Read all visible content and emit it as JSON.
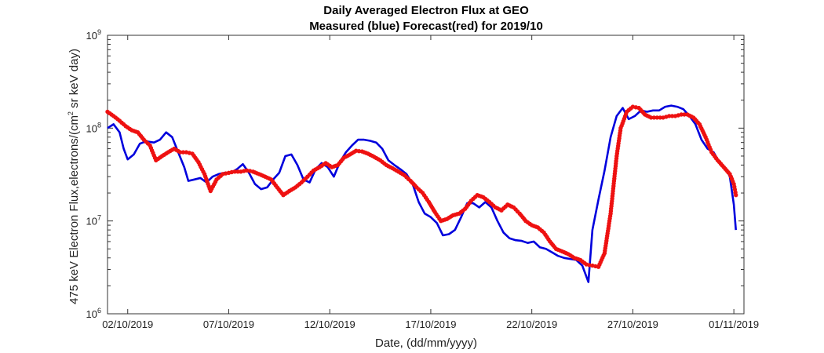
{
  "chart_data": {
    "type": "line",
    "title": "Daily Averaged Electron Flux at GEO",
    "subtitle": "Measured (blue) Forecast(red) for 2019/10",
    "xlabel": "Date, (dd/mm/yyyy)",
    "ylabel_main": "475 keV Electron Flux,electrons/(cm",
    "ylabel_exp": "2",
    "ylabel_tail": " sr keV day)",
    "x_unit": "day of October 2019",
    "xlim": [
      1,
      32.5
    ],
    "ylim": [
      1000000,
      1000000000
    ],
    "yscale": "log",
    "grid": false,
    "x_ticks": [
      {
        "value": 2,
        "label": "02/10/2019"
      },
      {
        "value": 7,
        "label": "07/10/2019"
      },
      {
        "value": 12,
        "label": "12/10/2019"
      },
      {
        "value": 17,
        "label": "17/10/2019"
      },
      {
        "value": 22,
        "label": "22/10/2019"
      },
      {
        "value": 27,
        "label": "27/10/2019"
      },
      {
        "value": 32,
        "label": "01/11/2019"
      }
    ],
    "y_ticks": [
      {
        "value": 1000000,
        "base": "10",
        "exp": "6"
      },
      {
        "value": 10000000,
        "base": "10",
        "exp": "7"
      },
      {
        "value": 100000000,
        "base": "10",
        "exp": "8"
      },
      {
        "value": 1000000000,
        "base": "10",
        "exp": "9"
      }
    ],
    "series": [
      {
        "color": "#0000dd",
        "style": "line",
        "points": [
          [
            1.0,
            100000000.0
          ],
          [
            1.3,
            110000000.0
          ],
          [
            1.6,
            90000000.0
          ],
          [
            1.8,
            60000000.0
          ],
          [
            2.0,
            46000000.0
          ],
          [
            2.3,
            52000000.0
          ],
          [
            2.6,
            68000000.0
          ],
          [
            2.9,
            72000000.0
          ],
          [
            3.3,
            70000000.0
          ],
          [
            3.6,
            75000000.0
          ],
          [
            3.9,
            90000000.0
          ],
          [
            4.2,
            80000000.0
          ],
          [
            4.5,
            55000000.0
          ],
          [
            4.8,
            38000000.0
          ],
          [
            5.0,
            27000000.0
          ],
          [
            5.3,
            28000000.0
          ],
          [
            5.6,
            29000000.0
          ],
          [
            5.9,
            26000000.0
          ],
          [
            6.2,
            30000000.0
          ],
          [
            6.5,
            32000000.0
          ],
          [
            6.8,
            33000000.0
          ],
          [
            7.1,
            33000000.0
          ],
          [
            7.4,
            36000000.0
          ],
          [
            7.7,
            41000000.0
          ],
          [
            8.0,
            33000000.0
          ],
          [
            8.3,
            25000000.0
          ],
          [
            8.6,
            22000000.0
          ],
          [
            8.9,
            23000000.0
          ],
          [
            9.2,
            28000000.0
          ],
          [
            9.5,
            33000000.0
          ],
          [
            9.8,
            50000000.0
          ],
          [
            10.1,
            52000000.0
          ],
          [
            10.4,
            40000000.0
          ],
          [
            10.7,
            28000000.0
          ],
          [
            11.0,
            26000000.0
          ],
          [
            11.3,
            36000000.0
          ],
          [
            11.6,
            42000000.0
          ],
          [
            11.9,
            38000000.0
          ],
          [
            12.2,
            30000000.0
          ],
          [
            12.5,
            43000000.0
          ],
          [
            12.8,
            55000000.0
          ],
          [
            13.1,
            65000000.0
          ],
          [
            13.4,
            75000000.0
          ],
          [
            13.7,
            75000000.0
          ],
          [
            14.0,
            73000000.0
          ],
          [
            14.3,
            70000000.0
          ],
          [
            14.6,
            60000000.0
          ],
          [
            14.9,
            45000000.0
          ],
          [
            15.2,
            40000000.0
          ],
          [
            15.5,
            36000000.0
          ],
          [
            15.8,
            32000000.0
          ],
          [
            16.1,
            25000000.0
          ],
          [
            16.4,
            16000000.0
          ],
          [
            16.7,
            12000000.0
          ],
          [
            17.0,
            11000000.0
          ],
          [
            17.3,
            9500000.0
          ],
          [
            17.6,
            7000000.0
          ],
          [
            17.9,
            7200000.0
          ],
          [
            18.2,
            8000000.0
          ],
          [
            18.5,
            11000000.0
          ],
          [
            18.8,
            15500000.0
          ],
          [
            19.1,
            15500000.0
          ],
          [
            19.4,
            14000000.0
          ],
          [
            19.7,
            16000000.0
          ],
          [
            20.0,
            14000000.0
          ],
          [
            20.3,
            10000000.0
          ],
          [
            20.6,
            7500000.0
          ],
          [
            20.9,
            6500000.0
          ],
          [
            21.2,
            6200000.0
          ],
          [
            21.5,
            6100000.0
          ],
          [
            21.8,
            5800000.0
          ],
          [
            22.1,
            6000000.0
          ],
          [
            22.4,
            5200000.0
          ],
          [
            22.7,
            5000000.0
          ],
          [
            23.0,
            4600000.0
          ],
          [
            23.3,
            4200000.0
          ],
          [
            23.6,
            4000000.0
          ],
          [
            23.9,
            3900000.0
          ],
          [
            24.2,
            3800000.0
          ],
          [
            24.5,
            3300000.0
          ],
          [
            24.8,
            2200000.0
          ],
          [
            25.0,
            8000000.0
          ],
          [
            25.3,
            17000000.0
          ],
          [
            25.6,
            35000000.0
          ],
          [
            25.9,
            80000000.0
          ],
          [
            26.2,
            135000000.0
          ],
          [
            26.5,
            165000000.0
          ],
          [
            26.8,
            125000000.0
          ],
          [
            27.1,
            135000000.0
          ],
          [
            27.4,
            155000000.0
          ],
          [
            27.7,
            150000000.0
          ],
          [
            28.0,
            155000000.0
          ],
          [
            28.3,
            155000000.0
          ],
          [
            28.6,
            170000000.0
          ],
          [
            28.9,
            175000000.0
          ],
          [
            29.2,
            170000000.0
          ],
          [
            29.5,
            160000000.0
          ],
          [
            29.8,
            135000000.0
          ],
          [
            30.1,
            110000000.0
          ],
          [
            30.4,
            75000000.0
          ],
          [
            30.7,
            60000000.0
          ],
          [
            31.0,
            55000000.0
          ],
          [
            31.3,
            42000000.0
          ],
          [
            31.6,
            37000000.0
          ],
          [
            31.8,
            30000000.0
          ],
          [
            32.0,
            15000000.0
          ],
          [
            32.1,
            8000000.0
          ]
        ]
      },
      {
        "color": "#ee1111",
        "style": "dots",
        "points": [
          [
            1.0,
            150000000.0
          ],
          [
            1.3,
            135000000.0
          ],
          [
            1.6,
            120000000.0
          ],
          [
            1.9,
            105000000.0
          ],
          [
            2.2,
            95000000.0
          ],
          [
            2.5,
            90000000.0
          ],
          [
            2.8,
            75000000.0
          ],
          [
            3.1,
            65000000.0
          ],
          [
            3.4,
            45000000.0
          ],
          [
            3.7,
            50000000.0
          ],
          [
            4.0,
            55000000.0
          ],
          [
            4.3,
            60000000.0
          ],
          [
            4.6,
            55000000.0
          ],
          [
            4.9,
            55000000.0
          ],
          [
            5.2,
            53000000.0
          ],
          [
            5.5,
            43000000.0
          ],
          [
            5.8,
            32000000.0
          ],
          [
            6.1,
            21000000.0
          ],
          [
            6.4,
            28000000.0
          ],
          [
            6.7,
            32000000.0
          ],
          [
            7.0,
            33000000.0
          ],
          [
            7.3,
            34000000.0
          ],
          [
            7.6,
            34000000.0
          ],
          [
            7.9,
            35000000.0
          ],
          [
            8.2,
            34000000.0
          ],
          [
            8.5,
            32000000.0
          ],
          [
            8.8,
            30000000.0
          ],
          [
            9.1,
            28000000.0
          ],
          [
            9.4,
            23000000.0
          ],
          [
            9.7,
            19000000.0
          ],
          [
            10.0,
            21000000.0
          ],
          [
            10.3,
            23000000.0
          ],
          [
            10.6,
            26000000.0
          ],
          [
            10.9,
            30000000.0
          ],
          [
            11.2,
            35000000.0
          ],
          [
            11.5,
            38000000.0
          ],
          [
            11.8,
            42000000.0
          ],
          [
            12.1,
            38000000.0
          ],
          [
            12.4,
            40000000.0
          ],
          [
            12.7,
            48000000.0
          ],
          [
            13.0,
            52000000.0
          ],
          [
            13.3,
            57000000.0
          ],
          [
            13.6,
            56000000.0
          ],
          [
            13.9,
            53000000.0
          ],
          [
            14.2,
            49000000.0
          ],
          [
            14.5,
            45000000.0
          ],
          [
            14.8,
            40000000.0
          ],
          [
            15.1,
            37000000.0
          ],
          [
            15.4,
            34000000.0
          ],
          [
            15.7,
            31000000.0
          ],
          [
            16.0,
            27000000.0
          ],
          [
            16.3,
            23000000.0
          ],
          [
            16.6,
            20000000.0
          ],
          [
            16.9,
            16000000.0
          ],
          [
            17.2,
            12500000.0
          ],
          [
            17.5,
            10000000.0
          ],
          [
            17.8,
            10500000.0
          ],
          [
            18.1,
            11500000.0
          ],
          [
            18.4,
            12000000.0
          ],
          [
            18.7,
            13500000.0
          ],
          [
            19.0,
            16500000.0
          ],
          [
            19.3,
            19000000.0
          ],
          [
            19.6,
            18000000.0
          ],
          [
            19.9,
            16000000.0
          ],
          [
            20.2,
            14000000.0
          ],
          [
            20.5,
            13000000.0
          ],
          [
            20.8,
            15000000.0
          ],
          [
            21.1,
            14000000.0
          ],
          [
            21.4,
            12000000.0
          ],
          [
            21.7,
            10000000.0
          ],
          [
            22.0,
            9000000.0
          ],
          [
            22.3,
            8500000.0
          ],
          [
            22.6,
            7500000.0
          ],
          [
            22.9,
            6000000.0
          ],
          [
            23.2,
            5000000.0
          ],
          [
            23.5,
            4700000.0
          ],
          [
            23.8,
            4400000.0
          ],
          [
            24.1,
            4000000.0
          ],
          [
            24.4,
            3800000.0
          ],
          [
            24.7,
            3400000.0
          ],
          [
            25.0,
            3300000.0
          ],
          [
            25.3,
            3200000.0
          ],
          [
            25.6,
            4500000.0
          ],
          [
            25.9,
            12000000.0
          ],
          [
            26.2,
            50000000.0
          ],
          [
            26.4,
            100000000.0
          ],
          [
            26.7,
            150000000.0
          ],
          [
            27.0,
            170000000.0
          ],
          [
            27.3,
            165000000.0
          ],
          [
            27.6,
            140000000.0
          ],
          [
            27.9,
            130000000.0
          ],
          [
            28.2,
            130000000.0
          ],
          [
            28.5,
            130000000.0
          ],
          [
            28.8,
            135000000.0
          ],
          [
            29.1,
            135000000.0
          ],
          [
            29.4,
            140000000.0
          ],
          [
            29.7,
            140000000.0
          ],
          [
            30.0,
            130000000.0
          ],
          [
            30.3,
            110000000.0
          ],
          [
            30.6,
            80000000.0
          ],
          [
            30.9,
            55000000.0
          ],
          [
            31.2,
            45000000.0
          ],
          [
            31.5,
            38000000.0
          ],
          [
            31.8,
            32000000.0
          ],
          [
            32.0,
            25000000.0
          ],
          [
            32.1,
            19000000.0
          ]
        ]
      }
    ]
  }
}
